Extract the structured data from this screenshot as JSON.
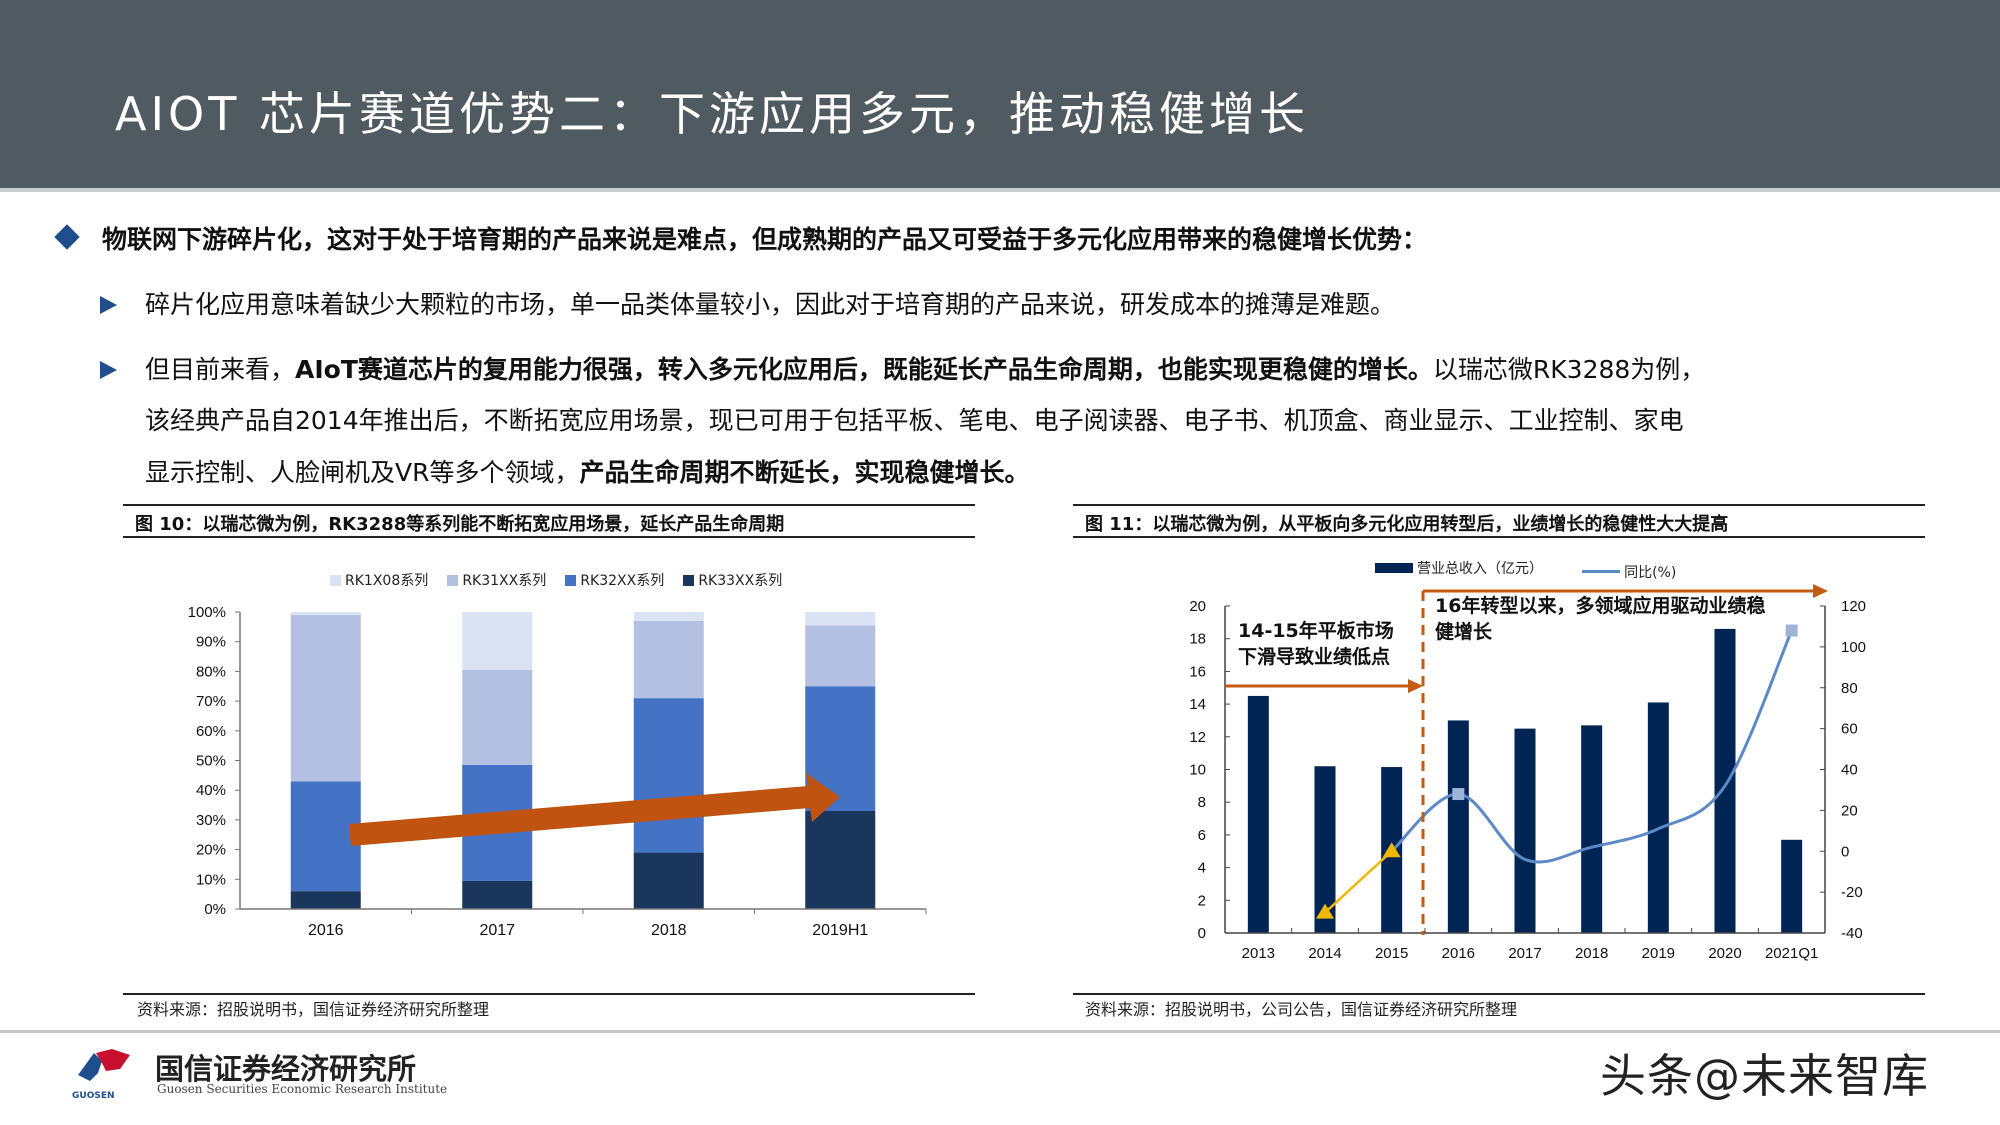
{
  "header": {
    "title": "AIOT 芯片赛道优势二：下游应用多元，推动稳健增长"
  },
  "bullets": {
    "main": "物联网下游碎片化，这对于处于培育期的产品来说是难点，但成熟期的产品又可受益于多元化应用带来的稳健增长优势：",
    "sub1": "碎片化应用意味着缺少大颗粒的市场，单一品类体量较小，因此对于培育期的产品来说，研发成本的摊薄是难题。",
    "sub2": {
      "line1_a": "但目前来看，",
      "line1_b": "AIoT赛道芯片的复用能力很强，转入多元化应用后，既能延长产品生命周期，也能实现更稳健的增长。",
      "line1_c": "以瑞芯微RK3288为例，",
      "line2": "该经典产品自2014年推出后，不断拓宽应用场景，现已可用于包括平板、笔电、电子阅读器、电子书、机顶盒、商业显示、工业控制、家电",
      "line3_a": "显示控制、人脸闸机及VR等多个领域，",
      "line3_b": "产品生命周期不断延长，实现稳健增长。"
    }
  },
  "figures": {
    "left": {
      "title": "图 10：以瑞芯微为例，RK3288等系列能不断拓宽应用场景，延长产品生命周期",
      "source": "资料来源：招股说明书，国信证券经济研究所整理"
    },
    "right": {
      "title": "图 11：以瑞芯微为例，从平板向多元化应用转型后，业绩增长的稳健性大大提高",
      "source": "资料来源：招股说明书，公司公告，国信证券经济研究所整理",
      "annotation_left": [
        "14-15年平板市场",
        "下滑导致业绩低点"
      ],
      "annotation_right": [
        "16年转型以来，多领域应用驱动业绩稳",
        "健增长"
      ]
    }
  },
  "footer": {
    "org_cn": "国信证券经济研究所",
    "org_en": "Guosen Securities Economic Research Institute",
    "logo_text": "GUOSEN",
    "watermark": "头条@未来智库"
  },
  "colors": {
    "header_bg": "#4f5a61",
    "bullet_blue": "#1f4e8c",
    "rk1x08": "#dae3f3",
    "rk31xx": "#b4c0e2",
    "rk32xx": "#4472c4",
    "rk33xx": "#1b365d",
    "revenue_bar": "#002555",
    "yoy_line": "#5b8ac6",
    "annotation_orange": "#c55a11",
    "trend_arrow": "#c0530f"
  },
  "chart_data": [
    {
      "type": "bar",
      "stacked": true,
      "title": "图 10：以瑞芯微为例，RK3288等系列能不断拓宽应用场景，延长产品生命周期",
      "categories": [
        "2016",
        "2017",
        "2018",
        "2019H1"
      ],
      "series": [
        {
          "name": "RK33XX系列",
          "values": [
            6,
            9.5,
            19,
            33
          ]
        },
        {
          "name": "RK32XX系列",
          "values": [
            37,
            39,
            52,
            42
          ]
        },
        {
          "name": "RK31XX系列",
          "values": [
            56,
            32,
            26,
            20.5
          ]
        },
        {
          "name": "RK1X08系列",
          "values": [
            1,
            19.5,
            3,
            4.5
          ]
        }
      ],
      "legend": [
        "RK1X08系列",
        "RK31XX系列",
        "RK32XX系列",
        "RK33XX系列"
      ],
      "legend_position": "top",
      "yticks": [
        "0%",
        "10%",
        "20%",
        "30%",
        "40%",
        "50%",
        "60%",
        "70%",
        "80%",
        "90%",
        "100%"
      ],
      "ylim": [
        0,
        100
      ],
      "xlabel": "",
      "ylabel": "",
      "grid": false,
      "annotations": [
        "orange upward trend arrow from 2016 to 2019H1"
      ]
    },
    {
      "type": "bar+line",
      "title": "图 11：以瑞芯微为例，从平板向多元化应用转型后，业绩增长的稳健性大大提高",
      "categories": [
        "2013",
        "2014",
        "2015",
        "2016",
        "2017",
        "2018",
        "2019",
        "2020",
        "2021Q1"
      ],
      "series": [
        {
          "name": "营业总收入（亿元）",
          "type": "bar",
          "axis": "left",
          "values": [
            14.5,
            10.2,
            10.15,
            13.0,
            12.5,
            12.7,
            14.1,
            18.6,
            5.7
          ]
        },
        {
          "name": "同比(%)",
          "type": "line",
          "axis": "right",
          "values": [
            null,
            -30,
            0,
            28,
            -4,
            2,
            11,
            32,
            108
          ]
        }
      ],
      "yticks_left": [
        "0",
        "2",
        "4",
        "6",
        "8",
        "10",
        "12",
        "14",
        "16",
        "18",
        "20"
      ],
      "ylim_left": [
        0,
        20
      ],
      "yticks_right": [
        "-40",
        "-20",
        "0",
        "20",
        "40",
        "60",
        "80",
        "100",
        "120"
      ],
      "ylim_right": [
        -40,
        120
      ],
      "legend": [
        "营业总收入（亿元）",
        "同比(%)"
      ],
      "legend_position": "top",
      "grid": false,
      "annotations": [
        "14-15年平板市场下滑导致业绩低点",
        "16年转型以来，多领域应用驱动业绩稳健增长"
      ]
    }
  ]
}
